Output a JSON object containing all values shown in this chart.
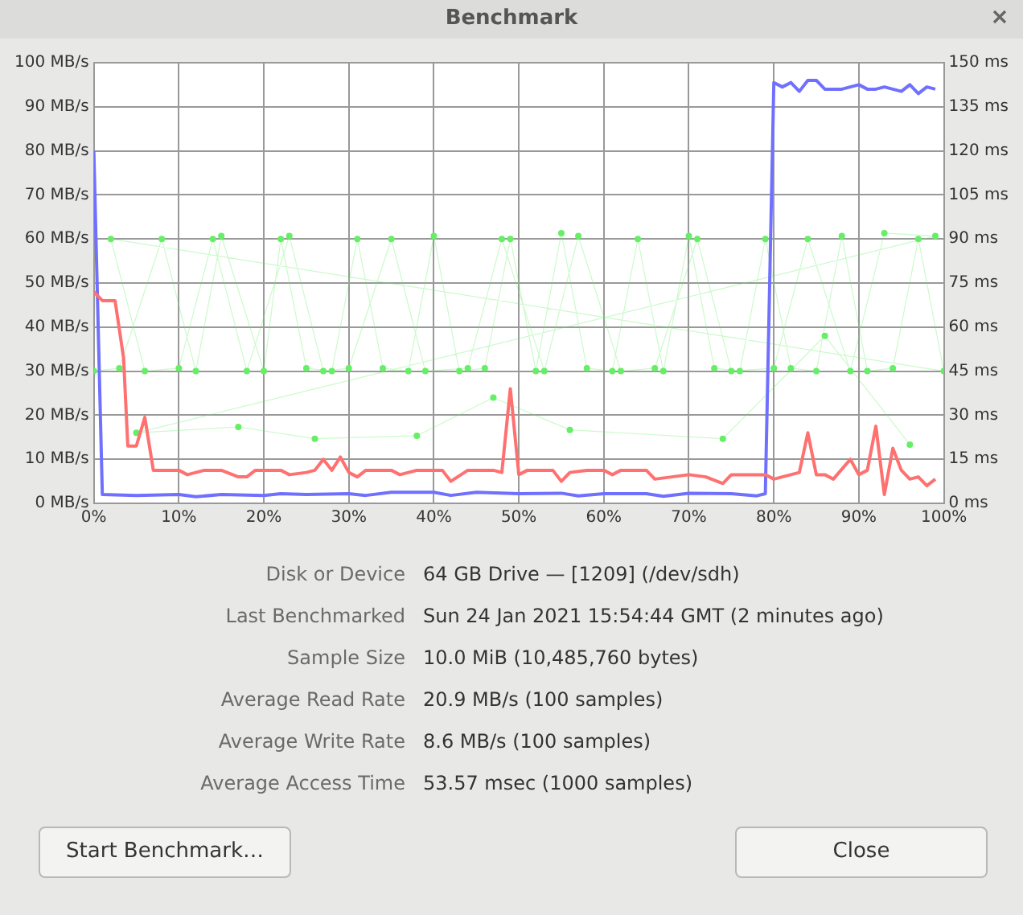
{
  "chart_data": {
    "type": "line",
    "title": "Benchmark",
    "xlim": [
      0,
      100
    ],
    "xticks": [
      {
        "value": 0,
        "label": "0%"
      },
      {
        "value": 10,
        "label": "10%"
      },
      {
        "value": 20,
        "label": "20%"
      },
      {
        "value": 30,
        "label": "30%"
      },
      {
        "value": 40,
        "label": "40%"
      },
      {
        "value": 50,
        "label": "50%"
      },
      {
        "value": 60,
        "label": "60%"
      },
      {
        "value": 70,
        "label": "70%"
      },
      {
        "value": 80,
        "label": "80%"
      },
      {
        "value": 90,
        "label": "90%"
      },
      {
        "value": 100,
        "label": "100%"
      }
    ],
    "ylim": [
      0,
      100
    ],
    "yticks": [
      {
        "value": 0,
        "label": "0 MB/s"
      },
      {
        "value": 10,
        "label": "10 MB/s"
      },
      {
        "value": 20,
        "label": "20 MB/s"
      },
      {
        "value": 30,
        "label": "30 MB/s"
      },
      {
        "value": 40,
        "label": "40 MB/s"
      },
      {
        "value": 50,
        "label": "50 MB/s"
      },
      {
        "value": 60,
        "label": "60 MB/s"
      },
      {
        "value": 70,
        "label": "70 MB/s"
      },
      {
        "value": 80,
        "label": "80 MB/s"
      },
      {
        "value": 90,
        "label": "90 MB/s"
      },
      {
        "value": 100,
        "label": "100 MB/s"
      }
    ],
    "y2lim": [
      0,
      150
    ],
    "y2ticks": [
      {
        "value": 0,
        "label": "0 ms"
      },
      {
        "value": 15,
        "label": "15 ms"
      },
      {
        "value": 30,
        "label": "30 ms"
      },
      {
        "value": 45,
        "label": "45 ms"
      },
      {
        "value": 60,
        "label": "60 ms"
      },
      {
        "value": 75,
        "label": "75 ms"
      },
      {
        "value": 90,
        "label": "90 ms"
      },
      {
        "value": 105,
        "label": "105 ms"
      },
      {
        "value": 120,
        "label": "120 ms"
      },
      {
        "value": 135,
        "label": "135 ms"
      },
      {
        "value": 150,
        "label": "150 ms"
      }
    ],
    "grid": true,
    "legend": false,
    "series": [
      {
        "type": "line",
        "axis": "y2",
        "color": "#66ee66",
        "marker": "circle",
        "x": [
          0,
          3,
          8,
          12,
          15,
          20,
          22,
          25,
          28,
          31,
          34,
          37,
          40,
          43,
          46,
          49,
          52,
          55,
          58,
          61,
          64,
          67,
          70,
          73,
          76,
          79,
          82,
          85,
          88,
          91,
          94,
          97,
          100,
          2,
          6,
          10,
          14,
          18,
          23,
          27,
          30,
          35,
          39,
          44,
          48,
          53,
          57,
          62,
          66,
          71,
          75,
          80,
          84,
          89,
          93,
          99,
          5,
          17,
          26,
          38,
          47,
          56,
          74,
          86,
          96
        ],
        "values": [
          45,
          46,
          90,
          45,
          91,
          45,
          90,
          46,
          45,
          90,
          46,
          45,
          91,
          45,
          46,
          90,
          45,
          92,
          46,
          45,
          90,
          45,
          91,
          46,
          45,
          90,
          46,
          45,
          91,
          45,
          46,
          90,
          45,
          90,
          45,
          46,
          90,
          45,
          91,
          45,
          46,
          90,
          45,
          46,
          90,
          45,
          91,
          45,
          46,
          90,
          45,
          46,
          90,
          45,
          92,
          91,
          24,
          26,
          22,
          23,
          36,
          25,
          22,
          57,
          20
        ]
      },
      {
        "color": "#ff7070",
        "marker": "none",
        "x": [
          0,
          1,
          2.5,
          3.5,
          4,
          5,
          6,
          7,
          10,
          11,
          13,
          15,
          17,
          18,
          19,
          22,
          23,
          25,
          26,
          27,
          28,
          29,
          30,
          31,
          32,
          35,
          36,
          38,
          41,
          42,
          44,
          47,
          48,
          49,
          50,
          51,
          54,
          55,
          56,
          58,
          60,
          61,
          62,
          65,
          66,
          70,
          72,
          74,
          75,
          78,
          79,
          80,
          82,
          83,
          84,
          85,
          86,
          87,
          89,
          90,
          91,
          92,
          93,
          94,
          95,
          96,
          97,
          98,
          99
        ],
        "values": [
          48,
          46,
          46,
          33,
          13,
          13,
          19.5,
          7.5,
          7.5,
          6.5,
          7.5,
          7.5,
          6,
          6,
          7.5,
          7.5,
          6.5,
          7,
          7.5,
          10,
          7.5,
          10.5,
          7,
          6,
          7.5,
          7.5,
          6.5,
          7.5,
          7.5,
          5,
          7.5,
          7.5,
          7,
          26,
          6.5,
          7.5,
          7.5,
          5,
          7,
          7.5,
          7.5,
          6.5,
          7.5,
          7.5,
          5.5,
          6.5,
          6,
          4.5,
          6.5,
          6.5,
          6.5,
          5.5,
          6.5,
          7,
          16,
          6.5,
          6.5,
          5.5,
          10,
          6.5,
          7.5,
          17.5,
          2,
          12.5,
          7.5,
          5.5,
          6,
          4,
          5.5
        ]
      },
      {
        "color": "#7070ff",
        "marker": "none",
        "x": [
          0,
          1,
          5,
          10,
          12,
          15,
          20,
          22,
          25,
          30,
          32,
          35,
          40,
          42,
          45,
          50,
          55,
          57,
          60,
          65,
          67,
          70,
          75,
          78,
          79,
          80,
          81,
          82,
          83,
          84,
          85,
          86,
          88,
          90,
          91,
          92,
          93,
          95,
          96,
          97,
          98,
          99
        ],
        "values": [
          80,
          2,
          1.8,
          2,
          1.5,
          2,
          1.8,
          2.2,
          2,
          2.2,
          1.8,
          2.5,
          2.5,
          1.8,
          2.5,
          2.2,
          2.3,
          1.7,
          2.2,
          2.2,
          1.6,
          2.3,
          2.2,
          1.7,
          2.2,
          95.5,
          94.5,
          95.5,
          93.5,
          96,
          96,
          94,
          94,
          95,
          94,
          94,
          94.5,
          93.5,
          95,
          93,
          94.5,
          94
        ]
      }
    ],
    "annotations": [
      "Disk or Device",
      "64 GB Drive — [1209] (/dev/sdh)",
      "Last Benchmarked",
      "Sun 24 Jan 2021 15:54:44 GMT (2 minutes ago)",
      "Sample Size",
      "10.0 MiB (10,485,760 bytes)",
      "Average Read Rate",
      "20.9 MB/s (100 samples)",
      "Average Write Rate",
      "8.6 MB/s (100 samples)",
      "Average Access Time",
      "53.57 msec (1000 samples)",
      "Start Benchmark…",
      "Close"
    ]
  }
}
